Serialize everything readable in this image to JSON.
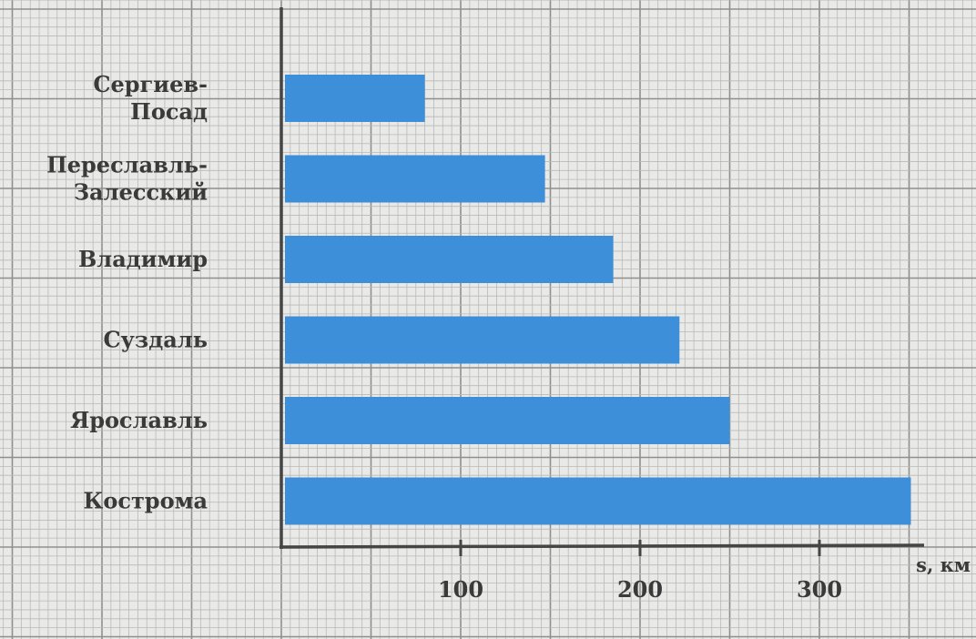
{
  "chart_data": {
    "type": "bar",
    "orientation": "horizontal",
    "categories": [
      [
        "Сергиев-",
        "Посад"
      ],
      [
        "Переславль-",
        "Залесский"
      ],
      [
        "Владимир"
      ],
      [
        "Суздаль"
      ],
      [
        "Ярославль"
      ],
      [
        "Кострома"
      ]
    ],
    "values": [
      80,
      147,
      185,
      222,
      250,
      351
    ],
    "xlabel": "s, км",
    "xlim": [
      0,
      365
    ],
    "xticks": [
      100,
      200,
      300
    ],
    "grid": true,
    "colors": {
      "bar": "#3e8fd9",
      "grid_minor": "#b9b9b7",
      "grid_major": "#8f8f8d",
      "axis": "#454545",
      "background": "#e9e9e7"
    }
  }
}
